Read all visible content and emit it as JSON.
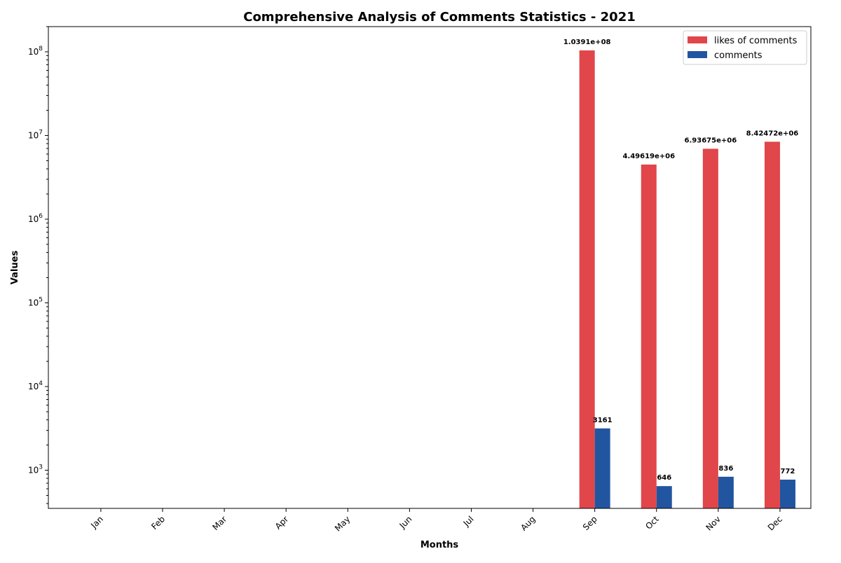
{
  "chart_data": {
    "type": "bar",
    "title": "Comprehensive Analysis of Comments Statistics - 2021",
    "xlabel": "Months",
    "ylabel": "Values",
    "yscale": "log",
    "ylim": [
      350,
      200000000
    ],
    "ytick_values": [
      1000,
      10000,
      100000,
      1000000,
      10000000,
      100000000
    ],
    "categories": [
      "Jan",
      "Feb",
      "Mar",
      "Apr",
      "May",
      "Jun",
      "Jul",
      "Aug",
      "Sep",
      "Oct",
      "Nov",
      "Dec"
    ],
    "series": [
      {
        "name": "likes of comments",
        "color": "#e0464a",
        "values": [
          0,
          0,
          0,
          0,
          0,
          0,
          0,
          0,
          103910000,
          4496190,
          6936750,
          8424720
        ],
        "labels": [
          "",
          "",
          "",
          "",
          "",
          "",
          "",
          "",
          "1.0391e+08",
          "4.49619e+06",
          "6.93675e+06",
          "8.42472e+06"
        ]
      },
      {
        "name": "comments",
        "color": "#2255a0",
        "values": [
          0,
          0,
          0,
          0,
          0,
          0,
          0,
          0,
          3161,
          646,
          836,
          772
        ],
        "labels": [
          "",
          "",
          "",
          "",
          "",
          "",
          "",
          "",
          "3161",
          "646",
          "836",
          "772"
        ]
      }
    ],
    "legend_position": "top-right",
    "grid": false
  }
}
